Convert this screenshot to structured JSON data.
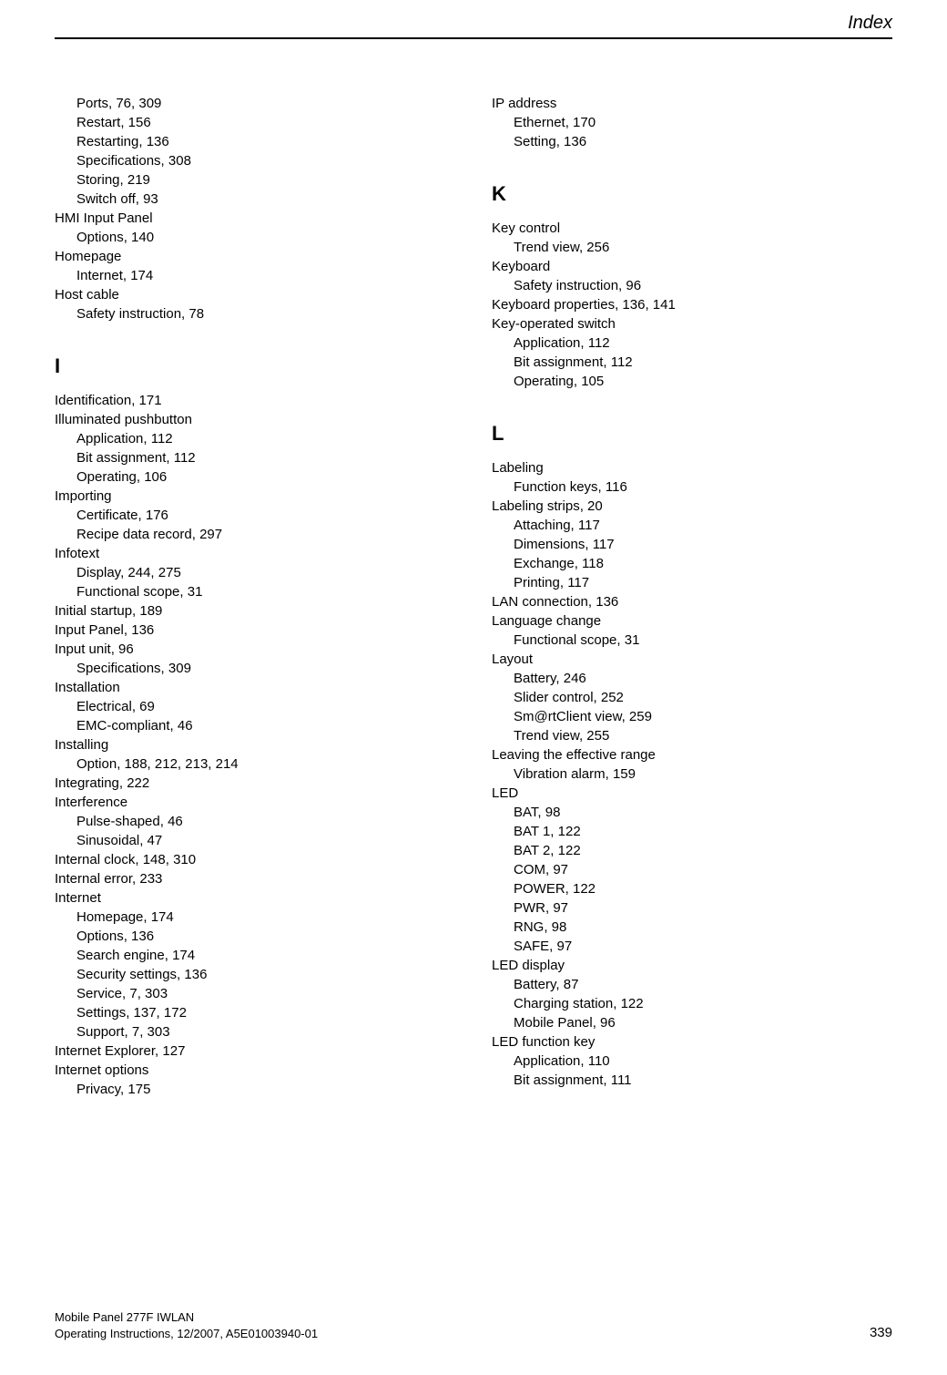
{
  "header": {
    "title": "Index"
  },
  "footer": {
    "line1": "Mobile Panel 277F IWLAN",
    "line2": "Operating Instructions, 12/2007, A5E01003940-01",
    "page": "339"
  },
  "left": {
    "continuation": [
      {
        "t": "Ports, 76, 309",
        "sub": true
      },
      {
        "t": "Restart, 156",
        "sub": true
      },
      {
        "t": "Restarting, 136",
        "sub": true
      },
      {
        "t": "Specifications, 308",
        "sub": true
      },
      {
        "t": "Storing, 219",
        "sub": true
      },
      {
        "t": "Switch off, 93",
        "sub": true
      },
      {
        "t": "HMI Input Panel",
        "sub": false
      },
      {
        "t": "Options, 140",
        "sub": true
      },
      {
        "t": "Homepage",
        "sub": false
      },
      {
        "t": "Internet, 174",
        "sub": true
      },
      {
        "t": "Host cable",
        "sub": false
      },
      {
        "t": "Safety instruction, 78",
        "sub": true
      }
    ],
    "I": {
      "letter": "I",
      "items": [
        {
          "t": "Identification, 171",
          "sub": false
        },
        {
          "t": "Illuminated pushbutton",
          "sub": false
        },
        {
          "t": "Application, 112",
          "sub": true
        },
        {
          "t": "Bit assignment, 112",
          "sub": true
        },
        {
          "t": "Operating, 106",
          "sub": true
        },
        {
          "t": "Importing",
          "sub": false
        },
        {
          "t": "Certificate, 176",
          "sub": true
        },
        {
          "t": "Recipe data record, 297",
          "sub": true
        },
        {
          "t": "Infotext",
          "sub": false
        },
        {
          "t": "Display, 244, 275",
          "sub": true
        },
        {
          "t": "Functional scope, 31",
          "sub": true
        },
        {
          "t": "Initial startup, 189",
          "sub": false
        },
        {
          "t": "Input Panel, 136",
          "sub": false
        },
        {
          "t": "Input unit, 96",
          "sub": false
        },
        {
          "t": "Specifications, 309",
          "sub": true
        },
        {
          "t": "Installation",
          "sub": false
        },
        {
          "t": "Electrical, 69",
          "sub": true
        },
        {
          "t": "EMC-compliant, 46",
          "sub": true
        },
        {
          "t": "Installing",
          "sub": false
        },
        {
          "t": "Option, 188, 212, 213, 214",
          "sub": true
        },
        {
          "t": "Integrating, 222",
          "sub": false
        },
        {
          "t": "Interference",
          "sub": false
        },
        {
          "t": "Pulse-shaped, 46",
          "sub": true
        },
        {
          "t": "Sinusoidal, 47",
          "sub": true
        },
        {
          "t": "Internal clock, 148, 310",
          "sub": false
        },
        {
          "t": "Internal error, 233",
          "sub": false
        },
        {
          "t": "Internet",
          "sub": false
        },
        {
          "t": "Homepage, 174",
          "sub": true
        },
        {
          "t": "Options, 136",
          "sub": true
        },
        {
          "t": "Search engine, 174",
          "sub": true
        },
        {
          "t": "Security settings, 136",
          "sub": true
        },
        {
          "t": "Service, 7, 303",
          "sub": true
        },
        {
          "t": "Settings, 137, 172",
          "sub": true
        },
        {
          "t": "Support, 7, 303",
          "sub": true
        },
        {
          "t": "Internet Explorer, 127",
          "sub": false
        },
        {
          "t": "Internet options",
          "sub": false
        },
        {
          "t": "Privacy, 175",
          "sub": true
        }
      ]
    }
  },
  "right": {
    "continuation": [
      {
        "t": "IP address",
        "sub": false
      },
      {
        "t": "Ethernet, 170",
        "sub": true
      },
      {
        "t": "Setting, 136",
        "sub": true
      }
    ],
    "K": {
      "letter": "K",
      "items": [
        {
          "t": "Key control",
          "sub": false
        },
        {
          "t": "Trend view, 256",
          "sub": true
        },
        {
          "t": "Keyboard",
          "sub": false
        },
        {
          "t": "Safety instruction, 96",
          "sub": true
        },
        {
          "t": "Keyboard properties, 136, 141",
          "sub": false
        },
        {
          "t": "Key-operated switch",
          "sub": false
        },
        {
          "t": "Application, 112",
          "sub": true
        },
        {
          "t": "Bit assignment, 112",
          "sub": true
        },
        {
          "t": "Operating, 105",
          "sub": true
        }
      ]
    },
    "L": {
      "letter": "L",
      "items": [
        {
          "t": "Labeling",
          "sub": false
        },
        {
          "t": "Function keys, 116",
          "sub": true
        },
        {
          "t": "Labeling strips, 20",
          "sub": false
        },
        {
          "t": "Attaching, 117",
          "sub": true
        },
        {
          "t": "Dimensions, 117",
          "sub": true
        },
        {
          "t": "Exchange, 118",
          "sub": true
        },
        {
          "t": "Printing, 117",
          "sub": true
        },
        {
          "t": "LAN connection, 136",
          "sub": false
        },
        {
          "t": "Language change",
          "sub": false
        },
        {
          "t": "Functional scope, 31",
          "sub": true
        },
        {
          "t": "Layout",
          "sub": false
        },
        {
          "t": "Battery, 246",
          "sub": true
        },
        {
          "t": "Slider control, 252",
          "sub": true
        },
        {
          "t": "Sm@rtClient view, 259",
          "sub": true
        },
        {
          "t": "Trend view, 255",
          "sub": true
        },
        {
          "t": "Leaving the effective range",
          "sub": false
        },
        {
          "t": "Vibration alarm, 159",
          "sub": true
        },
        {
          "t": "LED",
          "sub": false
        },
        {
          "t": "BAT, 98",
          "sub": true
        },
        {
          "t": "BAT 1, 122",
          "sub": true
        },
        {
          "t": "BAT 2, 122",
          "sub": true
        },
        {
          "t": "COM, 97",
          "sub": true
        },
        {
          "t": "POWER, 122",
          "sub": true
        },
        {
          "t": "PWR, 97",
          "sub": true
        },
        {
          "t": "RNG, 98",
          "sub": true
        },
        {
          "t": "SAFE, 97",
          "sub": true
        },
        {
          "t": "LED display",
          "sub": false
        },
        {
          "t": "Battery, 87",
          "sub": true
        },
        {
          "t": "Charging station, 122",
          "sub": true
        },
        {
          "t": "Mobile Panel, 96",
          "sub": true
        },
        {
          "t": "LED function key",
          "sub": false
        },
        {
          "t": "Application, 110",
          "sub": true
        },
        {
          "t": "Bit assignment, 111",
          "sub": true
        }
      ]
    }
  }
}
